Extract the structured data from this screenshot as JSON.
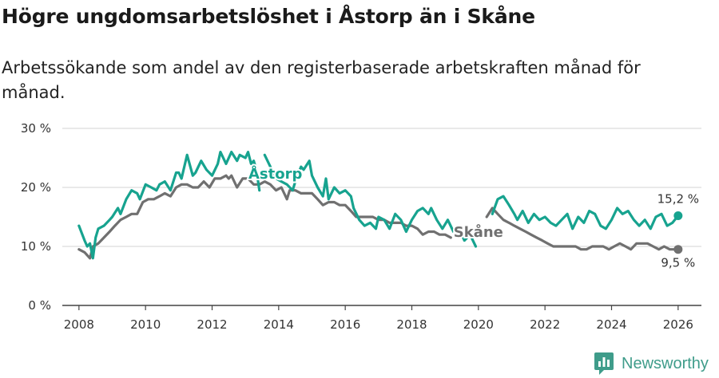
{
  "title": "Högre ungdomsarbetslöshet i Åstorp än i Skåne",
  "subtitle": "Arbetssökande som andel av den registerbaserade arbetskraften månad för månad.",
  "brand": {
    "name": "Newsworthy",
    "logo_icon": "chart-logo-icon"
  },
  "colors": {
    "astorp": "#17a38f",
    "skane": "#707070",
    "grid": "#dcdcdc",
    "axis": "#444444"
  },
  "chart_data": {
    "type": "line",
    "xlim": [
      2007.5,
      2026.7
    ],
    "ylim": [
      0,
      30
    ],
    "y_ticks": [
      0,
      10,
      20,
      30
    ],
    "y_tick_labels": [
      "0 %",
      "10 %",
      "20 %",
      "30 %"
    ],
    "x_ticks": [
      2008,
      2010,
      2012,
      2014,
      2016,
      2018,
      2020,
      2022,
      2024,
      2026
    ],
    "x_tick_labels": [
      "2008",
      "2010",
      "2012",
      "2014",
      "2016",
      "2018",
      "2020",
      "2022",
      "2024",
      "2026"
    ],
    "series": [
      {
        "name": "Åstorp",
        "label": "Åstorp",
        "color": "#17a38f",
        "end_label": "15,2 %",
        "segments": [
          [
            [
              2008.0,
              13.5
            ],
            [
              2008.17,
              11.0
            ],
            [
              2008.25,
              10.0
            ],
            [
              2008.33,
              10.5
            ],
            [
              2008.42,
              8.0
            ],
            [
              2008.5,
              11.5
            ],
            [
              2008.58,
              13.0
            ],
            [
              2008.75,
              13.5
            ],
            [
              2008.92,
              14.5
            ],
            [
              2009.0,
              15.0
            ],
            [
              2009.17,
              16.5
            ],
            [
              2009.25,
              15.5
            ],
            [
              2009.42,
              18.0
            ],
            [
              2009.58,
              19.5
            ],
            [
              2009.75,
              19.0
            ],
            [
              2009.83,
              18.0
            ],
            [
              2010.0,
              20.5
            ],
            [
              2010.17,
              20.0
            ],
            [
              2010.33,
              19.5
            ],
            [
              2010.42,
              20.5
            ],
            [
              2010.58,
              21.0
            ],
            [
              2010.75,
              19.5
            ],
            [
              2010.92,
              22.5
            ],
            [
              2011.0,
              22.5
            ],
            [
              2011.08,
              21.5
            ],
            [
              2011.25,
              25.5
            ],
            [
              2011.42,
              22.0
            ],
            [
              2011.5,
              22.5
            ],
            [
              2011.67,
              24.5
            ],
            [
              2011.83,
              23.0
            ],
            [
              2012.0,
              22.0
            ],
            [
              2012.17,
              24.0
            ],
            [
              2012.25,
              26.0
            ],
            [
              2012.42,
              24.0
            ],
            [
              2012.58,
              26.0
            ],
            [
              2012.75,
              24.5
            ],
            [
              2012.83,
              25.5
            ],
            [
              2013.0,
              25.0
            ],
            [
              2013.08,
              26.0
            ],
            [
              2013.17,
              24.0
            ],
            [
              2013.25,
              24.5
            ],
            [
              2013.33,
              23.0
            ],
            [
              2013.42,
              19.5
            ]
          ],
          [
            [
              2013.58,
              25.5
            ],
            [
              2013.75,
              23.5
            ],
            [
              2013.92,
              21.5
            ],
            [
              2014.08,
              21.0
            ],
            [
              2014.25,
              20.5
            ],
            [
              2014.42,
              19.5
            ],
            [
              2014.5,
              21.0
            ],
            [
              2014.67,
              23.5
            ],
            [
              2014.75,
              23.0
            ],
            [
              2014.92,
              24.5
            ],
            [
              2015.0,
              22.0
            ],
            [
              2015.17,
              20.0
            ],
            [
              2015.33,
              18.5
            ],
            [
              2015.42,
              21.5
            ],
            [
              2015.5,
              18.0
            ],
            [
              2015.67,
              20.0
            ],
            [
              2015.83,
              19.0
            ],
            [
              2016.0,
              19.5
            ],
            [
              2016.17,
              18.5
            ],
            [
              2016.25,
              16.5
            ],
            [
              2016.42,
              14.5
            ],
            [
              2016.58,
              13.5
            ],
            [
              2016.75,
              14.0
            ],
            [
              2016.92,
              13.0
            ],
            [
              2017.0,
              15.0
            ],
            [
              2017.17,
              14.5
            ],
            [
              2017.33,
              13.0
            ],
            [
              2017.5,
              15.5
            ],
            [
              2017.67,
              14.5
            ],
            [
              2017.83,
              12.5
            ],
            [
              2018.0,
              14.5
            ],
            [
              2018.17,
              16.0
            ],
            [
              2018.33,
              16.5
            ],
            [
              2018.5,
              15.5
            ],
            [
              2018.58,
              16.5
            ],
            [
              2018.75,
              14.5
            ],
            [
              2018.92,
              13.0
            ],
            [
              2019.08,
              14.5
            ],
            [
              2019.25,
              12.5
            ],
            [
              2019.42,
              13.0
            ],
            [
              2019.58,
              11.0
            ],
            [
              2019.75,
              12.0
            ],
            [
              2019.92,
              10.0
            ]
          ],
          [
            [
              2020.42,
              15.5
            ],
            [
              2020.58,
              18.0
            ],
            [
              2020.75,
              18.5
            ],
            [
              2020.92,
              17.0
            ],
            [
              2021.08,
              15.5
            ],
            [
              2021.17,
              14.5
            ],
            [
              2021.33,
              16.0
            ],
            [
              2021.5,
              14.0
            ],
            [
              2021.67,
              15.5
            ],
            [
              2021.83,
              14.5
            ],
            [
              2022.0,
              15.0
            ],
            [
              2022.17,
              14.0
            ],
            [
              2022.33,
              13.5
            ],
            [
              2022.5,
              14.5
            ],
            [
              2022.67,
              15.5
            ],
            [
              2022.83,
              13.0
            ],
            [
              2023.0,
              15.0
            ],
            [
              2023.17,
              14.0
            ],
            [
              2023.33,
              16.0
            ],
            [
              2023.5,
              15.5
            ],
            [
              2023.67,
              13.5
            ],
            [
              2023.83,
              13.0
            ],
            [
              2024.0,
              14.5
            ],
            [
              2024.17,
              16.5
            ],
            [
              2024.33,
              15.5
            ],
            [
              2024.5,
              16.0
            ],
            [
              2024.67,
              14.5
            ],
            [
              2024.83,
              13.5
            ],
            [
              2025.0,
              14.5
            ],
            [
              2025.17,
              13.0
            ],
            [
              2025.33,
              15.0
            ],
            [
              2025.5,
              15.5
            ],
            [
              2025.67,
              13.5
            ],
            [
              2025.83,
              14.0
            ],
            [
              2026.0,
              15.2
            ]
          ]
        ]
      },
      {
        "name": "Skåne",
        "label": "Skåne",
        "color": "#707070",
        "end_label": "9,5 %",
        "segments": [
          [
            [
              2008.0,
              9.5
            ],
            [
              2008.17,
              9.0
            ],
            [
              2008.33,
              8.0
            ],
            [
              2008.42,
              10.0
            ],
            [
              2008.58,
              10.5
            ],
            [
              2008.75,
              11.5
            ],
            [
              2008.92,
              12.5
            ],
            [
              2009.08,
              13.5
            ],
            [
              2009.25,
              14.5
            ],
            [
              2009.42,
              15.0
            ],
            [
              2009.58,
              15.5
            ],
            [
              2009.75,
              15.5
            ],
            [
              2009.92,
              17.5
            ],
            [
              2010.08,
              18.0
            ],
            [
              2010.25,
              18.0
            ],
            [
              2010.42,
              18.5
            ],
            [
              2010.58,
              19.0
            ],
            [
              2010.75,
              18.5
            ],
            [
              2010.92,
              20.0
            ],
            [
              2011.08,
              20.5
            ],
            [
              2011.25,
              20.5
            ],
            [
              2011.42,
              20.0
            ],
            [
              2011.58,
              20.0
            ],
            [
              2011.75,
              21.0
            ],
            [
              2011.92,
              20.0
            ],
            [
              2012.08,
              21.5
            ],
            [
              2012.25,
              21.5
            ],
            [
              2012.42,
              22.0
            ],
            [
              2012.5,
              21.5
            ],
            [
              2012.58,
              22.0
            ],
            [
              2012.75,
              20.0
            ],
            [
              2012.92,
              21.5
            ],
            [
              2013.08,
              21.5
            ],
            [
              2013.25,
              20.5
            ],
            [
              2013.42,
              20.5
            ],
            [
              2013.58,
              21.0
            ],
            [
              2013.75,
              20.5
            ],
            [
              2013.92,
              19.5
            ],
            [
              2014.08,
              20.0
            ],
            [
              2014.25,
              18.0
            ],
            [
              2014.33,
              19.5
            ],
            [
              2014.5,
              19.5
            ],
            [
              2014.67,
              19.0
            ],
            [
              2014.83,
              19.0
            ],
            [
              2015.0,
              19.0
            ],
            [
              2015.17,
              18.0
            ],
            [
              2015.33,
              17.0
            ],
            [
              2015.5,
              17.5
            ],
            [
              2015.67,
              17.5
            ],
            [
              2015.83,
              17.0
            ],
            [
              2016.0,
              17.0
            ],
            [
              2016.17,
              16.0
            ],
            [
              2016.33,
              15.0
            ],
            [
              2016.5,
              15.0
            ],
            [
              2016.67,
              15.0
            ],
            [
              2016.83,
              15.0
            ],
            [
              2017.0,
              14.5
            ],
            [
              2017.17,
              14.5
            ],
            [
              2017.33,
              14.0
            ],
            [
              2017.5,
              14.0
            ],
            [
              2017.67,
              14.0
            ],
            [
              2017.83,
              13.5
            ],
            [
              2018.0,
              13.5
            ],
            [
              2018.17,
              13.0
            ],
            [
              2018.33,
              12.0
            ],
            [
              2018.5,
              12.5
            ],
            [
              2018.67,
              12.5
            ],
            [
              2018.83,
              12.0
            ],
            [
              2019.0,
              12.0
            ],
            [
              2019.17,
              11.5
            ]
          ],
          [
            [
              2020.25,
              15.0
            ],
            [
              2020.42,
              16.5
            ],
            [
              2020.58,
              15.5
            ],
            [
              2020.75,
              14.5
            ],
            [
              2020.92,
              14.0
            ],
            [
              2021.08,
              13.5
            ],
            [
              2021.25,
              13.0
            ],
            [
              2021.42,
              12.5
            ],
            [
              2021.58,
              12.0
            ],
            [
              2021.75,
              11.5
            ],
            [
              2021.92,
              11.0
            ],
            [
              2022.08,
              10.5
            ],
            [
              2022.25,
              10.0
            ],
            [
              2022.42,
              10.0
            ],
            [
              2022.58,
              10.0
            ],
            [
              2022.75,
              10.0
            ],
            [
              2022.92,
              10.0
            ],
            [
              2023.08,
              9.5
            ],
            [
              2023.25,
              9.5
            ],
            [
              2023.42,
              10.0
            ],
            [
              2023.58,
              10.0
            ],
            [
              2023.75,
              10.0
            ],
            [
              2023.92,
              9.5
            ],
            [
              2024.08,
              10.0
            ],
            [
              2024.25,
              10.5
            ],
            [
              2024.42,
              10.0
            ],
            [
              2024.58,
              9.5
            ],
            [
              2024.75,
              10.5
            ],
            [
              2024.92,
              10.5
            ],
            [
              2025.08,
              10.5
            ],
            [
              2025.25,
              10.0
            ],
            [
              2025.42,
              9.5
            ],
            [
              2025.58,
              10.0
            ],
            [
              2025.75,
              9.5
            ],
            [
              2025.92,
              9.5
            ],
            [
              2026.0,
              9.5
            ]
          ]
        ]
      }
    ]
  }
}
